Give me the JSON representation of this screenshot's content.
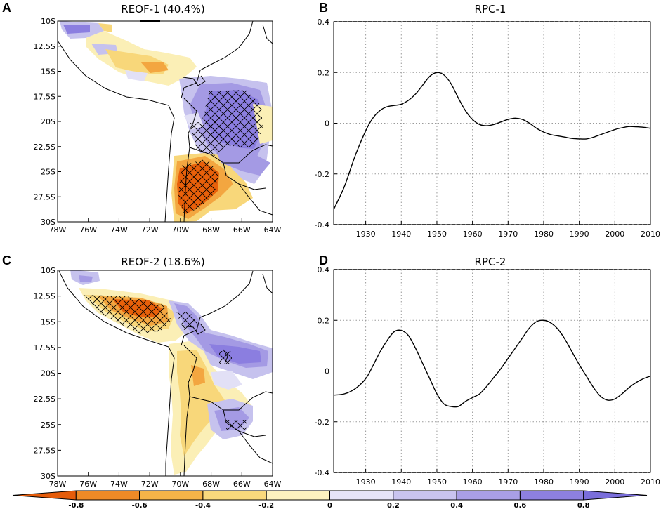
{
  "panels": {
    "A": {
      "letter": "A",
      "title": "REOF-1 (40.4%)"
    },
    "B": {
      "letter": "B",
      "title": "RPC-1"
    },
    "C": {
      "letter": "C",
      "title": "REOF-2 (18.6%)"
    },
    "D": {
      "letter": "D",
      "title": "RPC-2"
    }
  },
  "map_axes": {
    "lat_labels": [
      "10S",
      "12.5S",
      "15S",
      "17.5S",
      "20S",
      "22.5S",
      "25S",
      "27.5S",
      "30S"
    ],
    "lon_labels": [
      "78W",
      "76W",
      "74W",
      "72W",
      "70W",
      "68W",
      "66W",
      "64W"
    ]
  },
  "colors": {
    "strong_neg": "#e8600a",
    "neg": "#f3a640",
    "weak_neg": "#f8d77a",
    "very_weak_neg": "#fbefb6",
    "very_weak_pos": "#e2e0f6",
    "weak_pos": "#c6c2ee",
    "pos": "#a49ae4",
    "strong_pos": "#8b7ee0",
    "line": "#000000",
    "grid": "#9a9a9a"
  },
  "colorbar": {
    "labels": [
      "-0.8",
      "-0.6",
      "-0.4",
      "-0.2",
      "0",
      "0.2",
      "0.4",
      "0.6",
      "0.8"
    ],
    "colors": [
      "#e55c0a",
      "#ef8a26",
      "#f5b448",
      "#f9d97c",
      "#fdf2c0",
      "#e6e4f8",
      "#c9c4ef",
      "#a99fe6",
      "#8d80e0",
      "#7a6edb"
    ]
  },
  "chart_data": [
    {
      "type": "line",
      "panel": "B",
      "title": "RPC-1",
      "xlabel": "",
      "ylabel": "",
      "xlim": [
        1921,
        2010
      ],
      "ylim": [
        -0.4,
        0.4
      ],
      "x_ticks": [
        1930,
        1940,
        1950,
        1960,
        1970,
        1980,
        1990,
        2000,
        2010
      ],
      "y_ticks": [
        0.4,
        0.2,
        0,
        -0.2,
        -0.4
      ],
      "y_tick_labels": [
        "0.4",
        "0.2",
        "0",
        "-0.2",
        "-0.4"
      ],
      "grid": true,
      "series": [
        {
          "name": "RPC-1",
          "x": [
            1921,
            1924,
            1927,
            1930,
            1932,
            1934,
            1936,
            1938,
            1940,
            1942,
            1944,
            1946,
            1948,
            1950,
            1952,
            1954,
            1956,
            1958,
            1960,
            1962,
            1964,
            1966,
            1968,
            1970,
            1972,
            1974,
            1976,
            1978,
            1980,
            1982,
            1984,
            1986,
            1988,
            1990,
            1992,
            1994,
            1996,
            1998,
            2000,
            2002,
            2004,
            2006,
            2008,
            2010
          ],
          "y": [
            -0.34,
            -0.25,
            -0.13,
            -0.03,
            0.02,
            0.05,
            0.065,
            0.07,
            0.075,
            0.09,
            0.115,
            0.15,
            0.185,
            0.2,
            0.19,
            0.155,
            0.1,
            0.05,
            0.015,
            -0.005,
            -0.01,
            -0.005,
            0.005,
            0.015,
            0.02,
            0.015,
            0.0,
            -0.02,
            -0.035,
            -0.045,
            -0.05,
            -0.055,
            -0.06,
            -0.062,
            -0.062,
            -0.055,
            -0.045,
            -0.035,
            -0.025,
            -0.018,
            -0.013,
            -0.014,
            -0.016,
            -0.02
          ]
        }
      ]
    },
    {
      "type": "line",
      "panel": "D",
      "title": "RPC-2",
      "xlabel": "",
      "ylabel": "",
      "xlim": [
        1921,
        2010
      ],
      "ylim": [
        -0.4,
        0.4
      ],
      "x_ticks": [
        1930,
        1940,
        1950,
        1960,
        1970,
        1980,
        1990,
        2000,
        2010
      ],
      "y_ticks": [
        0.4,
        0.2,
        0,
        -0.2,
        -0.4
      ],
      "y_tick_labels": [
        "0.4",
        "0.2",
        "0",
        "-0.2",
        "-0.4"
      ],
      "grid": true,
      "series": [
        {
          "name": "RPC-2",
          "x": [
            1921,
            1924,
            1927,
            1930,
            1932,
            1934,
            1936,
            1938,
            1940,
            1942,
            1944,
            1946,
            1948,
            1950,
            1952,
            1954,
            1956,
            1958,
            1960,
            1962,
            1964,
            1966,
            1968,
            1970,
            1972,
            1974,
            1976,
            1978,
            1980,
            1982,
            1984,
            1986,
            1988,
            1990,
            1992,
            1994,
            1996,
            1998,
            2000,
            2002,
            2004,
            2006,
            2008,
            2010
          ],
          "y": [
            -0.095,
            -0.09,
            -0.07,
            -0.03,
            0.02,
            0.075,
            0.12,
            0.155,
            0.16,
            0.14,
            0.09,
            0.03,
            -0.03,
            -0.09,
            -0.13,
            -0.14,
            -0.14,
            -0.12,
            -0.105,
            -0.09,
            -0.06,
            -0.025,
            0.01,
            0.05,
            0.09,
            0.13,
            0.17,
            0.195,
            0.2,
            0.19,
            0.165,
            0.125,
            0.075,
            0.025,
            -0.02,
            -0.065,
            -0.1,
            -0.115,
            -0.11,
            -0.09,
            -0.065,
            -0.045,
            -0.03,
            -0.02
          ]
        }
      ]
    }
  ]
}
